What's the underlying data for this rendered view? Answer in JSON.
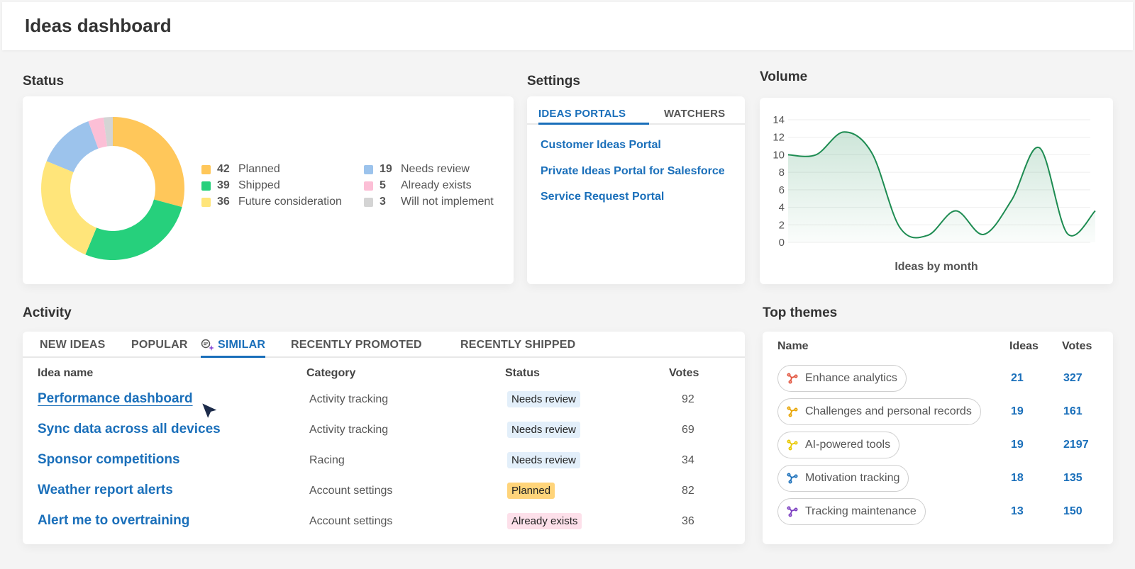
{
  "header": {
    "title": "Ideas dashboard"
  },
  "status": {
    "title": "Status",
    "items": [
      {
        "count": "42",
        "label": "Planned",
        "color": "#ffc75a"
      },
      {
        "count": "39",
        "label": "Shipped",
        "color": "#26d07c"
      },
      {
        "count": "36",
        "label": "Future consideration",
        "color": "#ffe57a"
      },
      {
        "count": "19",
        "label": "Needs review",
        "color": "#9cc3ec"
      },
      {
        "count": "5",
        "label": "Already exists",
        "color": "#fcbfd6"
      },
      {
        "count": "3",
        "label": "Will not implement",
        "color": "#d4d4d4"
      }
    ]
  },
  "settings": {
    "title": "Settings",
    "tabs": [
      "IDEAS PORTALS",
      "WATCHERS"
    ],
    "links": [
      "Customer Ideas Portal",
      "Private Ideas Portal for Salesforce",
      "Service Request Portal"
    ]
  },
  "volume": {
    "title": "Volume",
    "xlabel": "Ideas by month"
  },
  "chart_data": {
    "type": "area",
    "xlabel": "Ideas by month",
    "ylim": [
      0,
      14
    ],
    "yticks": [
      0,
      2,
      4,
      6,
      8,
      10,
      12,
      14
    ],
    "values": [
      10,
      10,
      12.6,
      10.2,
      1.7,
      0.8,
      3.6,
      0.9,
      4.8,
      10.8,
      1.0,
      3.6
    ],
    "color": "#1e8c52",
    "grid": true
  },
  "activity": {
    "title": "Activity",
    "tabs": [
      "NEW IDEAS",
      "POPULAR",
      "SIMILAR",
      "RECENTLY PROMOTED",
      "RECENTLY SHIPPED"
    ],
    "active_tab": "SIMILAR",
    "columns": [
      "Idea name",
      "Category",
      "Status",
      "Votes"
    ],
    "rows": [
      {
        "name": "Performance dashboard",
        "category": "Activity tracking",
        "status": "Needs review",
        "votes": "92"
      },
      {
        "name": "Sync data across all devices",
        "category": "Activity tracking",
        "status": "Needs review",
        "votes": "69"
      },
      {
        "name": "Sponsor competitions",
        "category": "Racing",
        "status": "Needs review",
        "votes": "34"
      },
      {
        "name": "Weather report alerts",
        "category": "Account settings",
        "status": "Planned",
        "votes": "82"
      },
      {
        "name": "Alert me to overtraining",
        "category": "Account settings",
        "status": "Already exists",
        "votes": "36"
      }
    ],
    "badge_colors": {
      "Needs review": "#e3effa",
      "Planned": "#ffd47a",
      "Already exists": "#fde0ea"
    }
  },
  "themes": {
    "title": "Top themes",
    "columns": [
      "Name",
      "Ideas",
      "Votes"
    ],
    "rows": [
      {
        "name": "Enhance analytics",
        "ideas": "21",
        "votes": "327",
        "icon_color": "#e2553f"
      },
      {
        "name": "Challenges and personal records",
        "ideas": "19",
        "votes": "161",
        "icon_color": "#e8a400"
      },
      {
        "name": "AI-powered tools",
        "ideas": "19",
        "votes": "2197",
        "icon_color": "#e8c800"
      },
      {
        "name": "Motivation tracking",
        "ideas": "18",
        "votes": "135",
        "icon_color": "#1a6fba"
      },
      {
        "name": "Tracking maintenance",
        "ideas": "13",
        "votes": "150",
        "icon_color": "#7a3cc0"
      }
    ]
  }
}
